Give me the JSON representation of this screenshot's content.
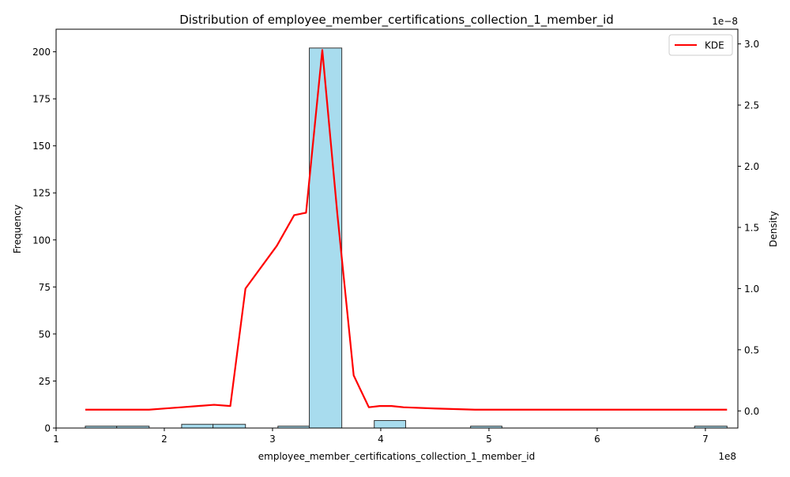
{
  "chart_data": {
    "type": "bar",
    "title": "Distribution of employee_member_certifications_collection_1_member_id",
    "xlabel": "employee_member_certifications_collection_1_member_id",
    "ylabel": "Frequency",
    "y2label": "Density",
    "x_offset_label": "1e8",
    "y2_offset_label": "1e−8",
    "xlim": [
      1.0,
      7.3
    ],
    "ylim": [
      0,
      212
    ],
    "y2lim": [
      -0.14,
      3.12
    ],
    "x_ticks": [
      1,
      2,
      3,
      4,
      5,
      6,
      7
    ],
    "x_tick_labels": [
      "1",
      "2",
      "3",
      "4",
      "5",
      "6",
      "7"
    ],
    "y_ticks": [
      0,
      25,
      50,
      75,
      100,
      125,
      150,
      175,
      200
    ],
    "y_tick_labels": [
      "0",
      "25",
      "50",
      "75",
      "100",
      "125",
      "150",
      "175",
      "200"
    ],
    "y2_ticks": [
      0.0,
      0.5,
      1.0,
      1.5,
      2.0,
      2.5,
      3.0
    ],
    "y2_tick_labels": [
      "0.0",
      "0.5",
      "1.0",
      "1.5",
      "2.0",
      "2.5",
      "3.0"
    ],
    "bins": [
      {
        "start": 1.27,
        "end": 1.56,
        "count": 1
      },
      {
        "start": 1.56,
        "end": 1.86,
        "count": 1
      },
      {
        "start": 2.16,
        "end": 2.45,
        "count": 2
      },
      {
        "start": 2.45,
        "end": 2.75,
        "count": 2
      },
      {
        "start": 3.05,
        "end": 3.34,
        "count": 1
      },
      {
        "start": 3.34,
        "end": 3.64,
        "count": 202
      },
      {
        "start": 3.94,
        "end": 4.23,
        "count": 4
      },
      {
        "start": 4.83,
        "end": 5.12,
        "count": 1
      },
      {
        "start": 6.9,
        "end": 7.2,
        "count": 1
      }
    ],
    "kde": {
      "name": "KDE",
      "color": "#ff0000",
      "x": [
        1.27,
        1.42,
        1.57,
        1.72,
        1.86,
        2.01,
        2.16,
        2.31,
        2.46,
        2.61,
        2.75,
        3.04,
        3.2,
        3.31,
        3.46,
        3.6,
        3.75,
        3.89,
        3.99,
        4.1,
        4.21,
        4.5,
        4.87,
        5.5,
        6.5,
        7.2
      ],
      "y": [
        0.01,
        0.01,
        0.01,
        0.01,
        0.01,
        0.02,
        0.03,
        0.04,
        0.05,
        0.04,
        1.0,
        1.35,
        1.6,
        1.62,
        2.95,
        1.6,
        0.29,
        0.03,
        0.04,
        0.04,
        0.03,
        0.02,
        0.01,
        0.01,
        0.01,
        0.01
      ]
    },
    "legend": {
      "position": "top-right",
      "entries": [
        "KDE"
      ]
    },
    "bar_color": "#a8dcee",
    "bar_edge_color": "#333333",
    "grid": false
  }
}
